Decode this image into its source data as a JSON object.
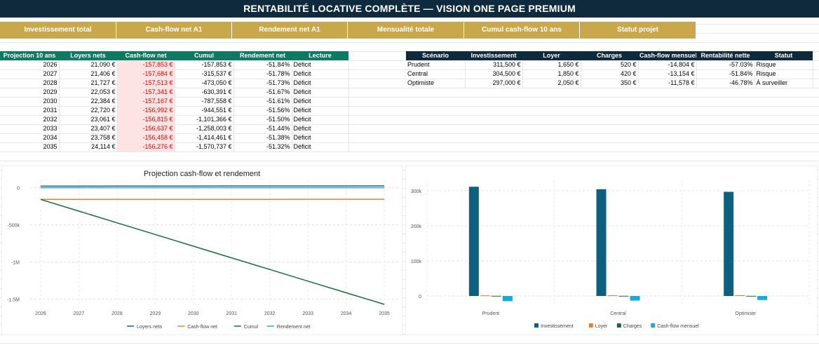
{
  "title": "RENTABILITÉ LOCATIVE COMPLÈTE — VISION ONE PAGE PREMIUM",
  "kpis": [
    "Investissement total",
    "Cash-flow net A1",
    "Rendement net A1",
    "Mensualité totale",
    "Cumul cash-flow 10 ans",
    "Statut projet"
  ],
  "projection": {
    "headers": [
      "Projection 10 ans",
      "Loyers nets",
      "Cash-flow net",
      "Cumul",
      "Rendement net",
      "Lecture"
    ],
    "rows": [
      [
        "2026",
        "21,090 €",
        "-157,853 €",
        "-157,853 €",
        "-51.84%",
        "Déficit"
      ],
      [
        "2027",
        "21,406 €",
        "-157,684 €",
        "-315,537 €",
        "-51.78%",
        "Déficit"
      ],
      [
        "2028",
        "21,727 €",
        "-157,513 €",
        "-473,050 €",
        "-51.73%",
        "Déficit"
      ],
      [
        "2029",
        "22,053 €",
        "-157,341 €",
        "-630,391 €",
        "-51.67%",
        "Déficit"
      ],
      [
        "2030",
        "22,384 €",
        "-157,167 €",
        "-787,558 €",
        "-51.61%",
        "Déficit"
      ],
      [
        "2031",
        "22,720 €",
        "-156,992 €",
        "-944,551 €",
        "-51.56%",
        "Déficit"
      ],
      [
        "2032",
        "23,061 €",
        "-156,815 €",
        "-1,101,366 €",
        "-51.50%",
        "Déficit"
      ],
      [
        "2033",
        "23,407 €",
        "-156,637 €",
        "-1,258,003 €",
        "-51.44%",
        "Déficit"
      ],
      [
        "2034",
        "23,758 €",
        "-156,458 €",
        "-1,414,461 €",
        "-51.38%",
        "Déficit"
      ],
      [
        "2035",
        "24,114 €",
        "-156,276 €",
        "-1,570,737 €",
        "-51.32%",
        "Déficit"
      ]
    ]
  },
  "scenarios": {
    "headers": [
      "Scénario",
      "Investissement",
      "Loyer",
      "Charges",
      "Cash-flow mensuel",
      "Rentabilité nette",
      "Statut"
    ],
    "rows": [
      [
        "Prudent",
        "311,500 €",
        "1,650 €",
        "520 €",
        "-14,804 €",
        "-57.03%",
        "Risque"
      ],
      [
        "Central",
        "304,500 €",
        "1,850 €",
        "420 €",
        "-13,154 €",
        "-51.84%",
        "Risque"
      ],
      [
        "Optimiste",
        "297,000 €",
        "2,050 €",
        "350 €",
        "-11,578 €",
        "-46.78%",
        "À surveiller"
      ]
    ]
  },
  "chart_data": [
    {
      "type": "line",
      "title": "Projection cash-flow et rendement",
      "x": [
        "2026",
        "2027",
        "2028",
        "2029",
        "2030",
        "2031",
        "2032",
        "2033",
        "2034",
        "2035"
      ],
      "ylim": [
        -1600000,
        100000
      ],
      "yticks": [
        0,
        -500000,
        -1000000,
        -1500000
      ],
      "ytick_labels": [
        "0",
        "-500k",
        "-1M",
        "-1.5M"
      ],
      "grid": true,
      "legend_position": "bottom",
      "series": [
        {
          "name": "Loyers nets",
          "color": "#1f5f8b",
          "values": [
            21090,
            21406,
            21727,
            22053,
            22384,
            22720,
            23061,
            23407,
            23758,
            24114
          ]
        },
        {
          "name": "Cash-flow net",
          "color": "#ed7d31",
          "values": [
            -157853,
            -157684,
            -157513,
            -157341,
            -157167,
            -156992,
            -156815,
            -156637,
            -156458,
            -156276
          ]
        },
        {
          "name": "Cumul",
          "color": "#1a6b3c",
          "values": [
            -157853,
            -315537,
            -473050,
            -630391,
            -787558,
            -944551,
            -1101366,
            -1258003,
            -1414461,
            -1570737
          ]
        },
        {
          "name": "Rendement net",
          "color": "#2aa8d8",
          "values": [
            -0.5184,
            -0.5178,
            -0.5173,
            -0.5167,
            -0.5161,
            -0.5156,
            -0.515,
            -0.5144,
            -0.5138,
            -0.5132
          ]
        }
      ]
    },
    {
      "type": "bar",
      "title": "",
      "categories": [
        "Prudent",
        "Central",
        "Optimiste"
      ],
      "ylim": [
        -30000,
        330000
      ],
      "yticks": [
        0,
        100000,
        200000,
        300000
      ],
      "ytick_labels": [
        "0",
        "100k",
        "200k",
        "300k"
      ],
      "grid": true,
      "legend_position": "bottom",
      "series": [
        {
          "name": "Investissement",
          "color": "#0f5f7f",
          "values": [
            311500,
            304500,
            297000
          ]
        },
        {
          "name": "Loyer",
          "color": "#ed7d31",
          "values": [
            1650,
            1850,
            2050
          ]
        },
        {
          "name": "Charges",
          "color": "#1a6b3c",
          "values": [
            520,
            420,
            350
          ]
        },
        {
          "name": "Cash-flow mensuel",
          "color": "#1aaad8",
          "values": [
            -14804,
            -13154,
            -11578
          ]
        }
      ]
    }
  ]
}
